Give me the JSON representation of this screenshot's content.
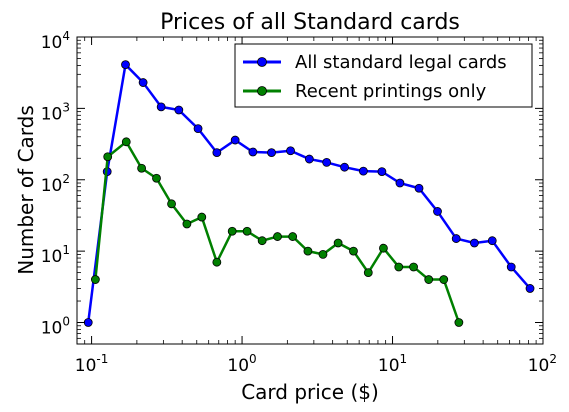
{
  "chart_data": {
    "type": "line",
    "title": "Prices of all Standard cards",
    "xlabel": "Card price ($)",
    "ylabel": "Number of Cards",
    "xscale": "log",
    "yscale": "log",
    "xlim": [
      0.08,
      100
    ],
    "ylim": [
      0.5,
      10000
    ],
    "grid": false,
    "legend_position": "top-right",
    "x_ticks": [
      {
        "value": 0.1,
        "base": "10",
        "exp": "-1"
      },
      {
        "value": 1,
        "base": "10",
        "exp": "0"
      },
      {
        "value": 10,
        "base": "10",
        "exp": "1"
      },
      {
        "value": 100,
        "base": "10",
        "exp": "2"
      }
    ],
    "y_ticks": [
      {
        "value": 1,
        "base": "10",
        "exp": "0"
      },
      {
        "value": 10,
        "base": "10",
        "exp": "1"
      },
      {
        "value": 100,
        "base": "10",
        "exp": "2"
      },
      {
        "value": 1000,
        "base": "10",
        "exp": "3"
      },
      {
        "value": 10000,
        "base": "10",
        "exp": "4"
      }
    ],
    "series": [
      {
        "name": "All standard legal cards",
        "color": "#0000ff",
        "points": [
          [
            0.095,
            1
          ],
          [
            0.127,
            130
          ],
          [
            0.168,
            4100
          ],
          [
            0.22,
            2300
          ],
          [
            0.29,
            1050
          ],
          [
            0.38,
            950
          ],
          [
            0.51,
            520
          ],
          [
            0.68,
            240
          ],
          [
            0.9,
            360
          ],
          [
            1.18,
            245
          ],
          [
            1.57,
            240
          ],
          [
            2.1,
            255
          ],
          [
            2.8,
            195
          ],
          [
            3.65,
            175
          ],
          [
            4.8,
            150
          ],
          [
            6.4,
            132
          ],
          [
            8.5,
            130
          ],
          [
            11.2,
            90
          ],
          [
            15,
            76
          ],
          [
            19.9,
            36
          ],
          [
            26.5,
            15
          ],
          [
            35,
            13
          ],
          [
            46,
            14
          ],
          [
            61.5,
            6
          ],
          [
            82,
            3
          ]
        ]
      },
      {
        "name": "Recent printings only",
        "color": "#008000",
        "points": [
          [
            0.106,
            4
          ],
          [
            0.128,
            210
          ],
          [
            0.17,
            340
          ],
          [
            0.215,
            145
          ],
          [
            0.27,
            105
          ],
          [
            0.34,
            46
          ],
          [
            0.43,
            24
          ],
          [
            0.54,
            30
          ],
          [
            0.68,
            7
          ],
          [
            0.86,
            19
          ],
          [
            1.08,
            19
          ],
          [
            1.36,
            14
          ],
          [
            1.72,
            16
          ],
          [
            2.17,
            16
          ],
          [
            2.74,
            10
          ],
          [
            3.45,
            9
          ],
          [
            4.35,
            13
          ],
          [
            5.5,
            10
          ],
          [
            6.9,
            5
          ],
          [
            8.7,
            11
          ],
          [
            11,
            6
          ],
          [
            13.8,
            6
          ],
          [
            17.4,
            4
          ],
          [
            21.9,
            4
          ],
          [
            27.6,
            1
          ]
        ]
      }
    ]
  }
}
